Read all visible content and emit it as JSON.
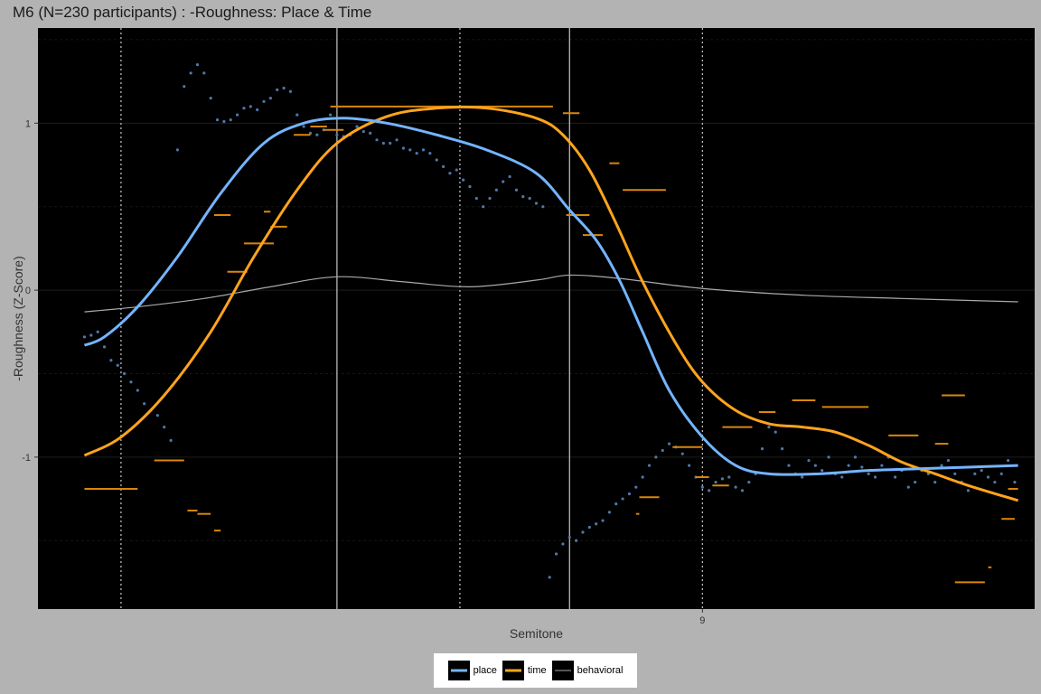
{
  "chart_data": {
    "type": "line",
    "title": "M6 (N=230 participants) : -Roughness: Place & Time",
    "xlabel": "Semitone",
    "ylabel": "-Roughness (Z-Score)",
    "xlim": [
      7.0,
      10.0
    ],
    "ylim": [
      -1.91,
      1.57
    ],
    "x_ticks": [
      9
    ],
    "x_tick_labels": [
      "9"
    ],
    "y_ticks": [
      1,
      0,
      -1
    ],
    "y_tick_labels": [
      "1",
      "0",
      "-1"
    ],
    "vlines_solid": [
      7.9,
      8.6
    ],
    "vlines_dotted": [
      7.25,
      8.27,
      9.0
    ],
    "legend": {
      "position": "bottom",
      "entries": [
        {
          "name": "place",
          "color": "#74b4ff"
        },
        {
          "name": "time",
          "color": "#ffa41c"
        },
        {
          "name": "behavioral",
          "color": "#aaaaaa"
        }
      ]
    },
    "series": [
      {
        "name": "place",
        "color": "#74b4ff",
        "x": [
          7.14,
          7.2,
          7.3,
          7.42,
          7.55,
          7.68,
          7.8,
          7.92,
          8.05,
          8.2,
          8.35,
          8.5,
          8.6,
          8.68,
          8.75,
          8.82,
          8.9,
          9.0,
          9.1,
          9.2,
          9.35,
          9.5,
          9.65,
          9.8,
          9.95
        ],
        "values": [
          -0.33,
          -0.28,
          -0.1,
          0.2,
          0.58,
          0.88,
          1.0,
          1.03,
          1.0,
          0.93,
          0.84,
          0.7,
          0.48,
          0.3,
          0.06,
          -0.25,
          -0.6,
          -0.88,
          -1.05,
          -1.1,
          -1.1,
          -1.08,
          -1.07,
          -1.06,
          -1.05
        ]
      },
      {
        "name": "time",
        "color": "#ffa41c",
        "x": [
          7.14,
          7.25,
          7.38,
          7.52,
          7.65,
          7.78,
          7.9,
          8.05,
          8.2,
          8.35,
          8.5,
          8.58,
          8.66,
          8.74,
          8.82,
          8.92,
          9.0,
          9.1,
          9.2,
          9.3,
          9.4,
          9.5,
          9.6,
          9.7,
          9.8,
          9.95
        ],
        "values": [
          -0.99,
          -0.88,
          -0.63,
          -0.25,
          0.2,
          0.6,
          0.88,
          1.04,
          1.09,
          1.09,
          1.03,
          0.93,
          0.72,
          0.4,
          0.05,
          -0.32,
          -0.55,
          -0.72,
          -0.8,
          -0.82,
          -0.85,
          -0.93,
          -1.03,
          -1.1,
          -1.17,
          -1.26
        ]
      },
      {
        "name": "behavioral",
        "color": "#aaaaaa",
        "x": [
          7.14,
          7.3,
          7.5,
          7.7,
          7.9,
          8.1,
          8.3,
          8.5,
          8.6,
          8.75,
          9.0,
          9.3,
          9.6,
          9.95
        ],
        "values": [
          -0.13,
          -0.1,
          -0.05,
          0.02,
          0.08,
          0.05,
          0.02,
          0.06,
          0.09,
          0.07,
          0.01,
          -0.03,
          -0.05,
          -0.07
        ]
      }
    ],
    "time_segments": [
      {
        "x": [
          7.14,
          7.3
        ],
        "y": -1.19
      },
      {
        "x": [
          7.35,
          7.44
        ],
        "y": -1.02
      },
      {
        "x": [
          7.45,
          7.48
        ],
        "y": -1.32
      },
      {
        "x": [
          7.48,
          7.52
        ],
        "y": -1.34
      },
      {
        "x": [
          7.53,
          7.55
        ],
        "y": -1.44
      },
      {
        "x": [
          7.53,
          7.58
        ],
        "y": 0.45
      },
      {
        "x": [
          7.57,
          7.63
        ],
        "y": 0.11
      },
      {
        "x": [
          7.62,
          7.71
        ],
        "y": 0.28
      },
      {
        "x": [
          7.68,
          7.7
        ],
        "y": 0.47
      },
      {
        "x": [
          7.7,
          7.75
        ],
        "y": 0.38
      },
      {
        "x": [
          7.77,
          7.82
        ],
        "y": 0.93
      },
      {
        "x": [
          7.82,
          7.87
        ],
        "y": 0.98
      },
      {
        "x": [
          7.86,
          7.92
        ],
        "y": 0.96
      },
      {
        "x": [
          7.88,
          8.55
        ],
        "y": 1.1
      },
      {
        "x": [
          8.58,
          8.63
        ],
        "y": 1.06
      },
      {
        "x": [
          8.59,
          8.66
        ],
        "y": 0.45
      },
      {
        "x": [
          8.64,
          8.7
        ],
        "y": 0.33
      },
      {
        "x": [
          8.72,
          8.75
        ],
        "y": 0.76
      },
      {
        "x": [
          8.76,
          8.89
        ],
        "y": 0.6
      },
      {
        "x": [
          8.8,
          8.81
        ],
        "y": -1.34
      },
      {
        "x": [
          8.81,
          8.87
        ],
        "y": -1.24
      },
      {
        "x": [
          8.91,
          9.0
        ],
        "y": -0.94
      },
      {
        "x": [
          8.98,
          9.02
        ],
        "y": -1.12
      },
      {
        "x": [
          9.03,
          9.08
        ],
        "y": -1.17
      },
      {
        "x": [
          9.06,
          9.15
        ],
        "y": -0.82
      },
      {
        "x": [
          9.17,
          9.22
        ],
        "y": -0.73
      },
      {
        "x": [
          9.27,
          9.34
        ],
        "y": -0.66
      },
      {
        "x": [
          9.36,
          9.5
        ],
        "y": -0.7
      },
      {
        "x": [
          9.56,
          9.65
        ],
        "y": -0.87
      },
      {
        "x": [
          9.7,
          9.74
        ],
        "y": -0.92
      },
      {
        "x": [
          9.72,
          9.79
        ],
        "y": -0.63
      },
      {
        "x": [
          9.76,
          9.85
        ],
        "y": -1.75
      },
      {
        "x": [
          9.86,
          9.87
        ],
        "y": -1.66
      },
      {
        "x": [
          9.9,
          9.94
        ],
        "y": -1.37
      },
      {
        "x": [
          9.92,
          9.95
        ],
        "y": -1.19
      }
    ],
    "place_raw_points": {
      "x": [
        7.14,
        7.16,
        7.18,
        7.2,
        7.22,
        7.24,
        7.26,
        7.28,
        7.3,
        7.32,
        7.34,
        7.36,
        7.38,
        7.4,
        7.42,
        7.44,
        7.46,
        7.48,
        7.5,
        7.52,
        7.54,
        7.56,
        7.58,
        7.6,
        7.62,
        7.64,
        7.66,
        7.68,
        7.7,
        7.72,
        7.74,
        7.76,
        7.78,
        7.8,
        7.82,
        7.84,
        7.86,
        7.88,
        7.9,
        7.92,
        7.94,
        7.96,
        7.98,
        8.0,
        8.02,
        8.04,
        8.06,
        8.08,
        8.1,
        8.12,
        8.14,
        8.16,
        8.18,
        8.2,
        8.22,
        8.24,
        8.26,
        8.28,
        8.3,
        8.32,
        8.34,
        8.36,
        8.38,
        8.4,
        8.42,
        8.44,
        8.46,
        8.48,
        8.5,
        8.52,
        8.54,
        8.56,
        8.58,
        8.6,
        8.62,
        8.64,
        8.66,
        8.68,
        8.7,
        8.72,
        8.74,
        8.76,
        8.78,
        8.8,
        8.82,
        8.84,
        8.86,
        8.88,
        8.9,
        8.92,
        8.94,
        8.96,
        8.98,
        9.0,
        9.02,
        9.04,
        9.06,
        9.08,
        9.1,
        9.12,
        9.14,
        9.16,
        9.18,
        9.2,
        9.22,
        9.24,
        9.26,
        9.28,
        9.3,
        9.32,
        9.34,
        9.36,
        9.38,
        9.4,
        9.42,
        9.44,
        9.46,
        9.48,
        9.5,
        9.52,
        9.54,
        9.56,
        9.58,
        9.6,
        9.62,
        9.64,
        9.66,
        9.68,
        9.7,
        9.72,
        9.74,
        9.76,
        9.78,
        9.8,
        9.82,
        9.84,
        9.86,
        9.88,
        9.9,
        9.92,
        9.94
      ],
      "values": [
        -0.28,
        -0.27,
        -0.25,
        -0.34,
        -0.42,
        -0.45,
        -0.5,
        -0.55,
        -0.6,
        -0.68,
        -0.72,
        -0.75,
        -0.82,
        -0.9,
        0.84,
        1.22,
        1.3,
        1.35,
        1.3,
        1.15,
        1.02,
        1.01,
        1.02,
        1.05,
        1.09,
        1.1,
        1.08,
        1.13,
        1.15,
        1.2,
        1.21,
        1.19,
        1.05,
        0.98,
        0.94,
        0.93,
        0.96,
        1.05,
        0.93,
        0.92,
        0.93,
        0.98,
        0.95,
        0.94,
        0.9,
        0.88,
        0.88,
        0.9,
        0.85,
        0.84,
        0.82,
        0.84,
        0.82,
        0.78,
        0.74,
        0.7,
        0.72,
        0.66,
        0.62,
        0.55,
        0.5,
        0.55,
        0.6,
        0.65,
        0.68,
        0.6,
        0.56,
        0.55,
        0.52,
        0.5,
        -1.72,
        -1.58,
        -1.52,
        -1.48,
        -1.5,
        -1.45,
        -1.42,
        -1.4,
        -1.38,
        -1.33,
        -1.28,
        -1.25,
        -1.22,
        -1.18,
        -1.12,
        -1.05,
        -1.0,
        -0.96,
        -0.92,
        -0.94,
        -0.98,
        -1.05,
        -1.12,
        -1.18,
        -1.2,
        -1.15,
        -1.13,
        -1.12,
        -1.18,
        -1.2,
        -1.15,
        -1.1,
        -0.95,
        -0.82,
        -0.85,
        -0.95,
        -1.05,
        -1.1,
        -1.12,
        -1.02,
        -1.05,
        -1.08,
        -1.0,
        -1.1,
        -1.12,
        -1.05,
        -1.0,
        -1.06,
        -1.1,
        -1.12,
        -1.05,
        -1.0,
        -1.12,
        -1.08,
        -1.18,
        -1.15,
        -1.08,
        -1.1,
        -1.15,
        -1.05,
        -1.02,
        -1.1,
        -1.15,
        -1.2,
        -1.1,
        -1.08,
        -1.12,
        -1.15,
        -1.1,
        -1.02,
        -1.15
      ]
    }
  }
}
